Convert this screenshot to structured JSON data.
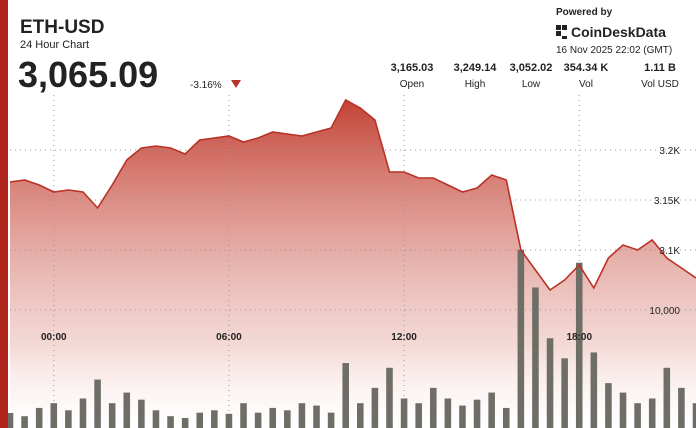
{
  "header": {
    "symbol": "ETH-USD",
    "subtitle": "24 Hour Chart",
    "price": "3,065.09",
    "change": "-3.16%",
    "powered_by": "Powered by",
    "brand": "CoinDeskData",
    "timestamp": "16 Nov 2025 22:02 (GMT)",
    "stats": [
      {
        "value": "3,165.03",
        "label": "Open"
      },
      {
        "value": "3,249.14",
        "label": "High"
      },
      {
        "value": "3,052.02",
        "label": "Low"
      },
      {
        "value": "354.34 K",
        "label": "Vol"
      },
      {
        "value": "1.11 B",
        "label": "Vol USD"
      }
    ]
  },
  "chart_data": {
    "type": "area",
    "x": [
      -1.5,
      -1,
      -0.5,
      0,
      0.5,
      1,
      1.5,
      2,
      2.5,
      3,
      3.5,
      4,
      4.5,
      5,
      5.5,
      6,
      6.5,
      7,
      7.5,
      8,
      8.5,
      9,
      9.5,
      10,
      10.5,
      11,
      11.5,
      12,
      12.5,
      13,
      13.5,
      14,
      14.5,
      15,
      15.5,
      16,
      16.5,
      17,
      17.5,
      18,
      18.5,
      19,
      19.5,
      20,
      20.5,
      21,
      21.5,
      22
    ],
    "series": [
      {
        "color": "#b83227",
        "values": [
          3168,
          3170,
          3165,
          3158,
          3160,
          3158,
          3142,
          3165,
          3190,
          3202,
          3204,
          3202,
          3196,
          3210,
          3212,
          3214,
          3208,
          3212,
          3218,
          3216,
          3214,
          3218,
          3222,
          3250,
          3242,
          3230,
          3178,
          3178,
          3172,
          3172,
          3165,
          3158,
          3162,
          3175,
          3170,
          3100,
          3080,
          3060,
          3070,
          3085,
          3062,
          3092,
          3105,
          3100,
          3110,
          3092,
          3082,
          3072
        ]
      },
      {
        "color": "#6e6e66",
        "axis": "y2",
        "values": [
          1270,
          1000,
          1700,
          2100,
          1500,
          2500,
          4100,
          2100,
          3000,
          2400,
          1500,
          1000,
          850,
          1300,
          1500,
          1200,
          2100,
          1300,
          1700,
          1500,
          2100,
          1900,
          1300,
          5500,
          2100,
          3400,
          5100,
          2500,
          2100,
          3400,
          2500,
          1900,
          2400,
          3000,
          1700,
          15100,
          11900,
          7600,
          5900,
          14000,
          6400,
          3800,
          3000,
          2100,
          2500,
          5100,
          3400,
          2100
        ]
      }
    ],
    "xlim": [
      -1.5,
      22
    ],
    "xticks": [
      {
        "value": 0,
        "label": "00:00"
      },
      {
        "value": 6,
        "label": "06:00"
      },
      {
        "value": 12,
        "label": "12:00"
      },
      {
        "value": 18,
        "label": "18:00"
      }
    ],
    "ylim": [
      2922,
      3255
    ],
    "yticks": [
      {
        "value": 3200,
        "label": "3.2K"
      },
      {
        "value": 3150,
        "label": "3.15K"
      },
      {
        "value": 3100,
        "label": "3.1K"
      }
    ],
    "y2lim": [
      0,
      28200
    ],
    "y2ticks": [
      {
        "value": 10000,
        "label": "10,000"
      }
    ],
    "grid": true
  }
}
